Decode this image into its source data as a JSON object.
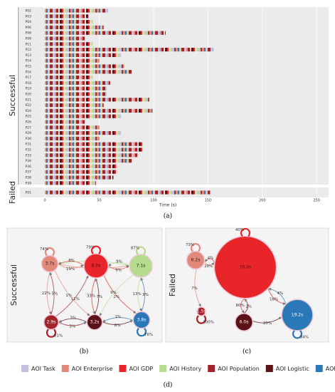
{
  "timeline": {
    "x_label": "Time (s)",
    "xlim": [
      -23,
      261
    ],
    "xticks": [
      0,
      50,
      100,
      150,
      200,
      250
    ],
    "groups": [
      {
        "name": "Successful",
        "rows": [
          {
            "label": "P02",
            "duration": 58
          },
          {
            "label": "P03",
            "duration": 40
          },
          {
            "label": "P04",
            "duration": 44
          },
          {
            "label": "P06",
            "duration": 54
          },
          {
            "label": "P08",
            "duration": 111
          },
          {
            "label": "P09",
            "duration": 37
          },
          {
            "label": "P11",
            "duration": 44
          },
          {
            "label": "P12",
            "duration": 155
          },
          {
            "label": "P13",
            "duration": 70
          },
          {
            "label": "P14",
            "duration": 50
          },
          {
            "label": "P15",
            "duration": 73
          },
          {
            "label": "P16",
            "duration": 80
          },
          {
            "label": "P17",
            "duration": 44
          },
          {
            "label": "P18",
            "duration": 60
          },
          {
            "label": "P19",
            "duration": 57
          },
          {
            "label": "P20",
            "duration": 57
          },
          {
            "label": "P21",
            "duration": 96
          },
          {
            "label": "P22",
            "duration": 54
          },
          {
            "label": "P24",
            "duration": 99
          },
          {
            "label": "P25",
            "duration": 70
          },
          {
            "label": "P26",
            "duration": 37
          },
          {
            "label": "P27",
            "duration": 50
          },
          {
            "label": "P29",
            "duration": 70
          },
          {
            "label": "P30",
            "duration": 50
          },
          {
            "label": "P31",
            "duration": 90
          },
          {
            "label": "P32",
            "duration": 90
          },
          {
            "label": "P33",
            "duration": 86
          },
          {
            "label": "P34",
            "duration": 80
          },
          {
            "label": "P36",
            "duration": 67
          },
          {
            "label": "P37",
            "duration": 67
          },
          {
            "label": "P38",
            "duration": 63
          },
          {
            "label": "P39",
            "duration": 47
          }
        ]
      },
      {
        "name": "Failed",
        "rows": [
          {
            "label": "P01",
            "duration": 152
          }
        ]
      }
    ]
  },
  "caption_a": "(a)",
  "graph_b": {
    "side_label": "Successful",
    "caption": "(b)",
    "nodes": [
      {
        "aoi": 1,
        "seconds": 3.7,
        "label": "3.7s"
      },
      {
        "aoi": 2,
        "seconds": 8.0,
        "label": "8.0s"
      },
      {
        "aoi": 3,
        "seconds": 7.1,
        "label": "7.1s"
      },
      {
        "aoi": 4,
        "seconds": 2.9,
        "label": "2.9s"
      },
      {
        "aoi": 5,
        "seconds": 3.2,
        "label": "3.2s"
      },
      {
        "aoi": 6,
        "seconds": 3.8,
        "label": "3.8s"
      }
    ],
    "edges": [
      {
        "from": 0,
        "to": 1,
        "label": "19%"
      },
      {
        "from": 1,
        "to": 0,
        "label": "8%"
      },
      {
        "from": 1,
        "to": 2,
        "label": "9%"
      },
      {
        "from": 2,
        "to": 1,
        "label": "9%"
      },
      {
        "from": 0,
        "to": 2,
        "label": "2%"
      },
      {
        "from": 2,
        "to": 0,
        "label": "1%"
      },
      {
        "from": 0,
        "to": 3,
        "label": "22%"
      },
      {
        "from": 3,
        "to": 0,
        "label": "5%"
      },
      {
        "from": 3,
        "to": 1,
        "label": "11%"
      },
      {
        "from": 1,
        "to": 4,
        "label": "33%"
      },
      {
        "from": 4,
        "to": 1,
        "label": "7%"
      },
      {
        "from": 1,
        "to": 5,
        "label": "2%"
      },
      {
        "from": 2,
        "to": 5,
        "label": "13%"
      },
      {
        "from": 5,
        "to": 2,
        "label": "3%"
      },
      {
        "from": 3,
        "to": 4,
        "label": "3%"
      },
      {
        "from": 4,
        "to": 3,
        "label": "3%"
      },
      {
        "from": 4,
        "to": 5,
        "label": "8%"
      },
      {
        "from": 5,
        "to": 4,
        "label": "1%"
      },
      {
        "from": 2,
        "to": 4,
        "label": "9%"
      },
      {
        "from": 0,
        "to": 4,
        "label": "1%"
      }
    ],
    "loops": [
      {
        "node": 0,
        "label": "74%"
      },
      {
        "node": 1,
        "label": "79%"
      },
      {
        "node": 2,
        "label": "87%"
      },
      {
        "node": 3,
        "label": "61%"
      },
      {
        "node": 5,
        "label": "76%"
      }
    ]
  },
  "graph_c": {
    "side_label": "Failed",
    "caption": "(c)",
    "nodes": [
      {
        "aoi": 1,
        "seconds": 6.2,
        "label": "6.2s"
      },
      {
        "aoi": 2,
        "seconds": 76.0,
        "label": "76.0s"
      },
      {
        "aoi": 4,
        "seconds": 1.5,
        "label": "1.5s"
      },
      {
        "aoi": 5,
        "seconds": 6.0,
        "label": "6.0s"
      },
      {
        "aoi": 6,
        "seconds": 19.2,
        "label": "19.2s"
      }
    ],
    "edges": [
      {
        "from": 0,
        "to": 1,
        "label": "20%"
      },
      {
        "from": 1,
        "to": 0,
        "label": "4%"
      },
      {
        "from": 0,
        "to": 2,
        "label": "7%"
      },
      {
        "from": 1,
        "to": 3,
        "label": "80%"
      },
      {
        "from": 3,
        "to": 1,
        "label": "2%"
      },
      {
        "from": 3,
        "to": 4,
        "label": "20%"
      },
      {
        "from": 4,
        "to": 1,
        "label": "4%"
      },
      {
        "from": 1,
        "to": 4,
        "label": "16%"
      }
    ],
    "loops": [
      {
        "node": 0,
        "label": "73%"
      },
      {
        "node": 1,
        "label": "40%"
      },
      {
        "node": 2,
        "label": "100%"
      },
      {
        "node": 4,
        "label": "84%"
      }
    ]
  },
  "legend": [
    {
      "name": "AOI Task",
      "color": "#c5c0e0"
    },
    {
      "name": "AOI Enterprise",
      "color": "#e3897a"
    },
    {
      "name": "AOI GDP",
      "color": "#e8262a"
    },
    {
      "name": "AOI History",
      "color": "#b5dc8c"
    },
    {
      "name": "AOI Population",
      "color": "#a3232b"
    },
    {
      "name": "AOI Logistic",
      "color": "#5a1216"
    },
    {
      "name": "AOI Ranking",
      "color": "#2b78b8"
    }
  ],
  "caption_d": "(d)"
}
